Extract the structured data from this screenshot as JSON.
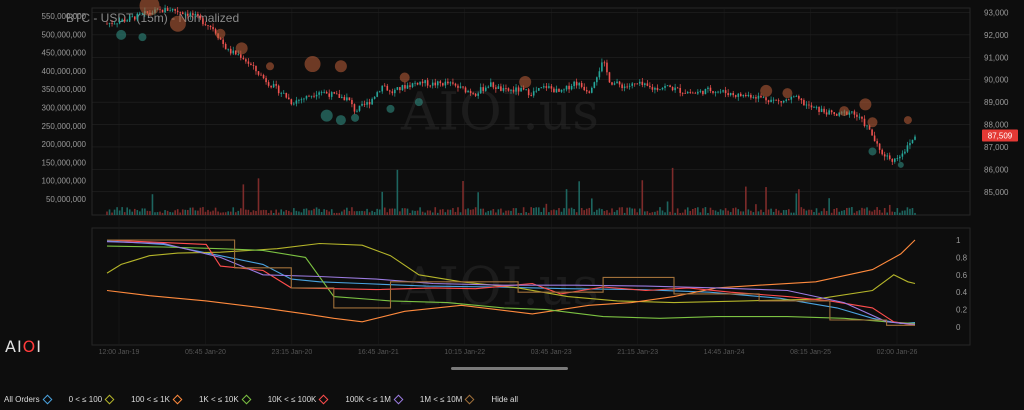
{
  "title": "BTC - USDT (15m) - Normalized",
  "watermark": "AIOI.us",
  "logo": {
    "a": "AI",
    "b": "O",
    "c": "I"
  },
  "price_badge": "87,509",
  "colors": {
    "background": "#0d0d0d",
    "grid": "#2a2a2a",
    "up": "#26a69a",
    "down": "#ef5350",
    "badge": "#e53935"
  },
  "legend": [
    {
      "label": "All Orders",
      "color": "#4aa3df"
    },
    {
      "label": "0 < ≤ 100",
      "color": "#b5b52a"
    },
    {
      "label": "100 < ≤ 1K",
      "color": "#ff8a3d"
    },
    {
      "label": "1K < ≤ 10K",
      "color": "#7cc242"
    },
    {
      "label": "10K < ≤ 100K",
      "color": "#ff4d4d"
    },
    {
      "label": "100K < ≤ 1M",
      "color": "#9b7be0"
    },
    {
      "label": "1M < ≤ 10M",
      "color": "#a0703a"
    },
    {
      "label": "Hide all",
      "color": ""
    }
  ],
  "chart_data": [
    {
      "type": "candlestick",
      "title": "BTC - USDT (15m) - Normalized",
      "x_tick_labels": [
        "12:00 Jan-19",
        "05:45 Jan-20",
        "23:15 Jan-20",
        "16:45 Jan-21",
        "10:15 Jan-22",
        "03:45 Jan-23",
        "21:15 Jan-23",
        "14:45 Jan-24",
        "08:15 Jan-25",
        "02:00 Jan-26"
      ],
      "price_axis": {
        "ticks": [
          85000,
          86000,
          87000,
          88000,
          89000,
          90000,
          91000,
          92000,
          93000
        ],
        "range": [
          84500,
          93200
        ]
      },
      "volume_axis": {
        "ticks": [
          "50,000,000",
          "100,000,000",
          "150,000,000",
          "200,000,000",
          "250,000,000",
          "300,000,000",
          "350,000,000",
          "400,000,000",
          "450,000,000",
          "500,000,000",
          "550,000,000"
        ]
      },
      "price_path": [
        [
          0,
          92500
        ],
        [
          3,
          92700
        ],
        [
          6,
          93000
        ],
        [
          9,
          93150
        ],
        [
          12,
          92900
        ],
        [
          15,
          92300
        ],
        [
          17,
          91300
        ],
        [
          19,
          91050
        ],
        [
          21,
          90400
        ],
        [
          23,
          89800
        ],
        [
          25,
          89350
        ],
        [
          26,
          89000
        ],
        [
          28,
          89200
        ],
        [
          30,
          89500
        ],
        [
          32,
          89300
        ],
        [
          34,
          89150
        ],
        [
          35,
          88600
        ],
        [
          37,
          89000
        ],
        [
          39,
          89800
        ],
        [
          40,
          89400
        ],
        [
          42,
          89700
        ],
        [
          44,
          89900
        ],
        [
          46,
          89800
        ],
        [
          48,
          89850
        ],
        [
          50,
          89600
        ],
        [
          52,
          89400
        ],
        [
          54,
          89800
        ],
        [
          56,
          89500
        ],
        [
          58,
          89550
        ],
        [
          60,
          89400
        ],
        [
          62,
          89700
        ],
        [
          64,
          89400
        ],
        [
          66,
          89900
        ],
        [
          68,
          89500
        ],
        [
          70,
          90800
        ],
        [
          71,
          89900
        ],
        [
          73,
          89700
        ],
        [
          75,
          89800
        ],
        [
          77,
          89600
        ],
        [
          79,
          89700
        ],
        [
          81,
          89500
        ],
        [
          83,
          89400
        ],
        [
          85,
          89550
        ],
        [
          87,
          89450
        ],
        [
          89,
          89300
        ],
        [
          91,
          89300
        ],
        [
          93,
          89150
        ],
        [
          95,
          89000
        ],
        [
          97,
          89200
        ],
        [
          99,
          88800
        ],
        [
          101,
          88600
        ],
        [
          103,
          88400
        ],
        [
          105,
          88600
        ],
        [
          106,
          88300
        ],
        [
          107,
          88000
        ],
        [
          108,
          87500
        ],
        [
          109,
          86800
        ],
        [
          110,
          86600
        ],
        [
          111,
          86400
        ],
        [
          112,
          86700
        ],
        [
          113,
          87000
        ],
        [
          114,
          87509
        ]
      ],
      "order_bubbles_sell": [
        [
          6,
          93300,
          10
        ],
        [
          10,
          92500,
          8
        ],
        [
          16,
          92050,
          5
        ],
        [
          19,
          91400,
          6
        ],
        [
          23,
          90600,
          4
        ],
        [
          29,
          90700,
          8
        ],
        [
          33,
          90600,
          6
        ],
        [
          42,
          90100,
          5
        ],
        [
          59,
          89900,
          6
        ],
        [
          93,
          89500,
          6
        ],
        [
          96,
          89400,
          5
        ],
        [
          104,
          88600,
          5
        ],
        [
          107,
          88900,
          6
        ],
        [
          108,
          88100,
          5
        ],
        [
          113,
          88200,
          4
        ]
      ],
      "order_bubbles_buy": [
        [
          2,
          92000,
          5
        ],
        [
          5,
          91900,
          4
        ],
        [
          31,
          88400,
          6
        ],
        [
          33,
          88200,
          5
        ],
        [
          35,
          88300,
          4
        ],
        [
          40,
          88700,
          4
        ],
        [
          44,
          89000,
          4
        ],
        [
          108,
          86800,
          4
        ],
        [
          112,
          86200,
          3
        ]
      ]
    },
    {
      "type": "line",
      "title": "",
      "y_axis": {
        "ticks": [
          0,
          0.2,
          0.4,
          0.6,
          0.8,
          1
        ],
        "range": [
          0,
          1
        ]
      },
      "series": [
        {
          "name": "All Orders",
          "color": "#4aa3df",
          "values": [
            [
              0,
              0.99
            ],
            [
              8,
              0.95
            ],
            [
              16,
              0.82
            ],
            [
              22,
              0.72
            ],
            [
              26,
              0.55
            ],
            [
              30,
              0.52
            ],
            [
              36,
              0.5
            ],
            [
              45,
              0.47
            ],
            [
              55,
              0.46
            ],
            [
              65,
              0.44
            ],
            [
              75,
              0.43
            ],
            [
              85,
              0.4
            ],
            [
              95,
              0.33
            ],
            [
              103,
              0.22
            ],
            [
              108,
              0.1
            ],
            [
              112,
              0.04
            ],
            [
              114,
              0.05
            ]
          ]
        },
        {
          "name": "0 < ≤ 100",
          "color": "#b5b52a",
          "values": [
            [
              0,
              0.62
            ],
            [
              2,
              0.72
            ],
            [
              6,
              0.82
            ],
            [
              10,
              0.85
            ],
            [
              16,
              0.86
            ],
            [
              24,
              0.9
            ],
            [
              30,
              0.96
            ],
            [
              36,
              0.94
            ],
            [
              40,
              0.82
            ],
            [
              44,
              0.6
            ],
            [
              50,
              0.52
            ],
            [
              58,
              0.45
            ],
            [
              65,
              0.35
            ],
            [
              72,
              0.3
            ],
            [
              80,
              0.28
            ],
            [
              90,
              0.3
            ],
            [
              100,
              0.32
            ],
            [
              108,
              0.42
            ],
            [
              111,
              0.6
            ],
            [
              113,
              0.52
            ],
            [
              114,
              0.5
            ]
          ]
        },
        {
          "name": "100 < ≤ 1K",
          "color": "#ff8a3d",
          "values": [
            [
              0,
              0.42
            ],
            [
              6,
              0.36
            ],
            [
              14,
              0.3
            ],
            [
              22,
              0.22
            ],
            [
              28,
              0.15
            ],
            [
              32,
              0.1
            ],
            [
              36,
              0.06
            ],
            [
              42,
              0.18
            ],
            [
              50,
              0.25
            ],
            [
              55,
              0.2
            ],
            [
              60,
              0.15
            ],
            [
              68,
              0.25
            ],
            [
              74,
              0.28
            ],
            [
              80,
              0.35
            ],
            [
              86,
              0.45
            ],
            [
              92,
              0.48
            ],
            [
              100,
              0.52
            ],
            [
              108,
              0.66
            ],
            [
              112,
              0.84
            ],
            [
              114,
              1.0
            ]
          ]
        },
        {
          "name": "1K < ≤ 10K",
          "color": "#7cc242",
          "values": [
            [
              0,
              0.93
            ],
            [
              8,
              0.92
            ],
            [
              16,
              0.9
            ],
            [
              22,
              0.88
            ],
            [
              28,
              0.8
            ],
            [
              32,
              0.35
            ],
            [
              40,
              0.3
            ],
            [
              48,
              0.28
            ],
            [
              56,
              0.22
            ],
            [
              62,
              0.2
            ],
            [
              70,
              0.12
            ],
            [
              78,
              0.1
            ],
            [
              86,
              0.12
            ],
            [
              96,
              0.12
            ],
            [
              104,
              0.1
            ],
            [
              110,
              0.06
            ],
            [
              114,
              0.04
            ]
          ]
        },
        {
          "name": "10K < ≤ 100K",
          "color": "#ff4d4d",
          "values": [
            [
              0,
              1.0
            ],
            [
              8,
              0.97
            ],
            [
              14,
              0.95
            ],
            [
              16,
              0.7
            ],
            [
              22,
              0.65
            ],
            [
              26,
              0.45
            ],
            [
              32,
              0.44
            ],
            [
              38,
              0.43
            ],
            [
              46,
              0.45
            ],
            [
              52,
              0.44
            ],
            [
              60,
              0.5
            ],
            [
              64,
              0.38
            ],
            [
              70,
              0.46
            ],
            [
              76,
              0.42
            ],
            [
              82,
              0.45
            ],
            [
              88,
              0.4
            ],
            [
              96,
              0.35
            ],
            [
              102,
              0.3
            ],
            [
              108,
              0.22
            ],
            [
              111,
              0.06
            ],
            [
              114,
              0.02
            ]
          ]
        },
        {
          "name": "100K < ≤ 1M",
          "color": "#9b7be0",
          "values": [
            [
              0,
              0.98
            ],
            [
              8,
              0.96
            ],
            [
              16,
              0.8
            ],
            [
              22,
              0.6
            ],
            [
              30,
              0.58
            ],
            [
              38,
              0.55
            ],
            [
              46,
              0.5
            ],
            [
              56,
              0.48
            ],
            [
              66,
              0.48
            ],
            [
              76,
              0.47
            ],
            [
              86,
              0.45
            ],
            [
              96,
              0.42
            ],
            [
              104,
              0.28
            ],
            [
              110,
              0.06
            ],
            [
              114,
              0.03
            ]
          ]
        },
        {
          "name": "1M < ≤ 10M",
          "color": "#a0703a",
          "values": [
            [
              0,
              1.0
            ],
            [
              18,
              1.0
            ],
            [
              18,
              0.68
            ],
            [
              26,
              0.68
            ],
            [
              26,
              0.45
            ],
            [
              32,
              0.45
            ],
            [
              32,
              0.22
            ],
            [
              40,
              0.22
            ],
            [
              40,
              0.52
            ],
            [
              58,
              0.52
            ],
            [
              58,
              0.4
            ],
            [
              70,
              0.4
            ],
            [
              70,
              0.57
            ],
            [
              80,
              0.57
            ],
            [
              80,
              0.38
            ],
            [
              92,
              0.38
            ],
            [
              92,
              0.3
            ],
            [
              102,
              0.3
            ],
            [
              102,
              0.08
            ],
            [
              110,
              0.08
            ],
            [
              110,
              0.02
            ],
            [
              114,
              0.02
            ]
          ]
        }
      ]
    }
  ]
}
